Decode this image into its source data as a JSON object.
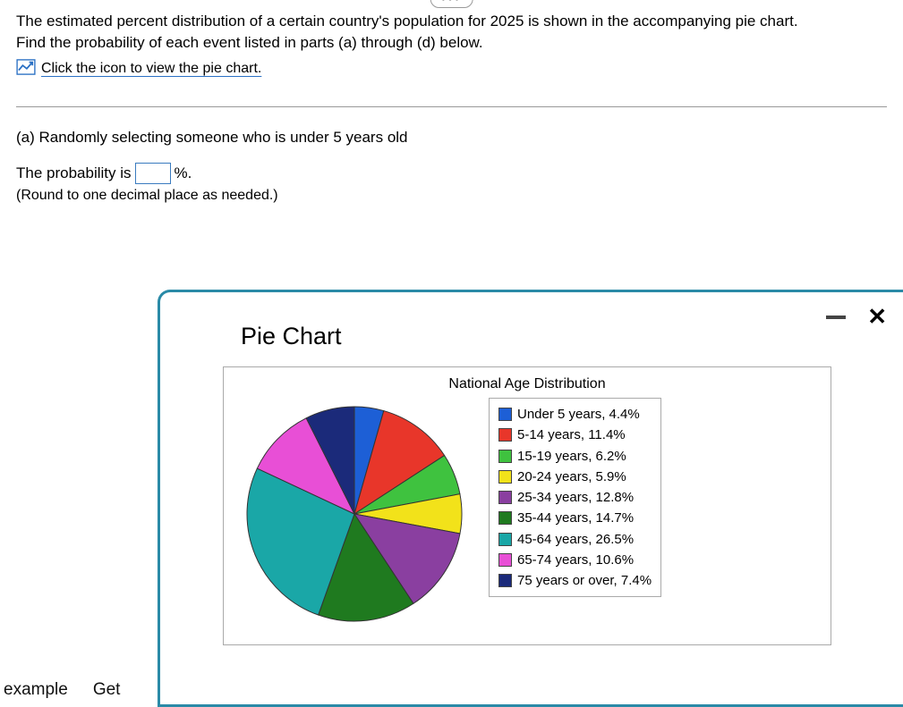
{
  "problem": {
    "line1": "The estimated percent distribution of a certain country's population for 2025 is shown in the accompanying pie chart.",
    "line2": "Find the probability of each event listed in parts (a) through (d) below.",
    "link_text": "Click the icon to view the pie chart."
  },
  "part_a": {
    "prompt": "(a) Randomly selecting someone who is under 5 years old",
    "answer_prefix": "The probability is",
    "answer_suffix": "%.",
    "round_note": "(Round to one decimal place as needed.)"
  },
  "popup": {
    "title": "Pie Chart",
    "chart_title": "National Age Distribution"
  },
  "chart": {
    "type": "pie",
    "background_color": "#ffffff",
    "border_color": "#aaaaaa",
    "slices": [
      {
        "label": "Under 5 years",
        "value": 4.4,
        "color": "#1d5fd6"
      },
      {
        "label": "5-14 years",
        "value": 11.4,
        "color": "#e8362a"
      },
      {
        "label": "15-19 years",
        "value": 6.2,
        "color": "#3fc23f"
      },
      {
        "label": "20-24 years",
        "value": 5.9,
        "color": "#f2e21a"
      },
      {
        "label": "25-34 years",
        "value": 12.8,
        "color": "#8a3fa0"
      },
      {
        "label": "35-44 years",
        "value": 14.7,
        "color": "#1f7a1f"
      },
      {
        "label": "45-64 years",
        "value": 26.5,
        "color": "#1aa7a7"
      },
      {
        "label": "65-74 years",
        "value": 10.6,
        "color": "#e84fd6"
      },
      {
        "label": "75 years or over",
        "value": 7.4,
        "color": "#1b2a7a"
      }
    ],
    "label_fontsize": 15,
    "title_fontsize": 16,
    "start_angle_deg": -90,
    "radius": 120,
    "stroke_color": "#333333",
    "stroke_width": 1
  },
  "footer": {
    "example": "example",
    "get": "Get"
  }
}
